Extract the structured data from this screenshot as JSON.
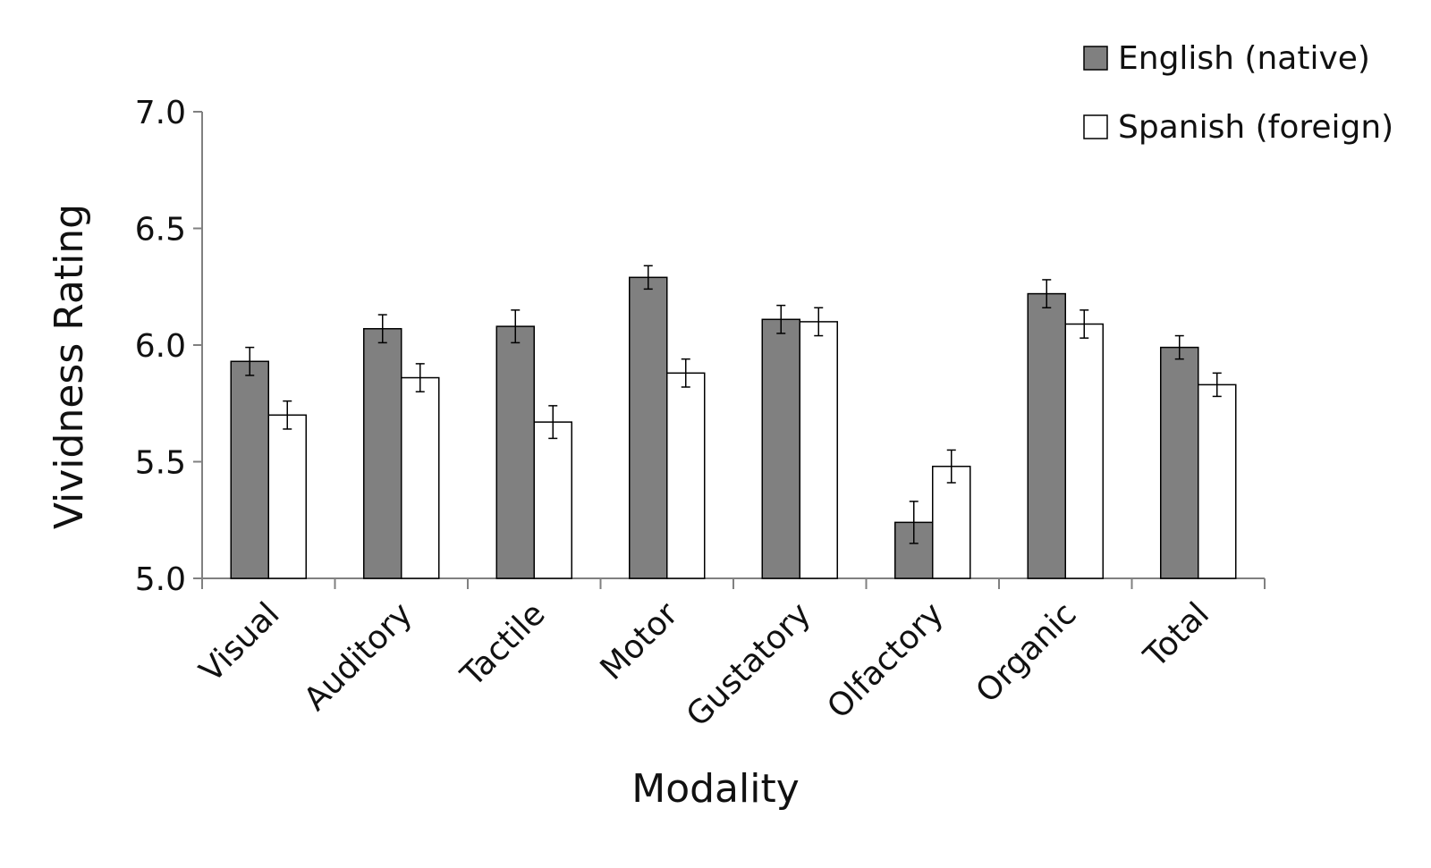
{
  "chart_data": {
    "type": "bar",
    "categories": [
      "Visual",
      "Auditory",
      "Tactile",
      "Motor",
      "Gustatory",
      "Olfactory",
      "Organic",
      "Total"
    ],
    "series": [
      {
        "name": "English (native)",
        "color": "#808080",
        "values": [
          5.93,
          6.07,
          6.08,
          6.29,
          6.11,
          5.24,
          6.22,
          5.99
        ],
        "errors": [
          0.06,
          0.06,
          0.07,
          0.05,
          0.06,
          0.09,
          0.06,
          0.05
        ]
      },
      {
        "name": "Spanish (foreign)",
        "color": "#ffffff",
        "values": [
          5.7,
          5.86,
          5.67,
          5.88,
          6.1,
          5.48,
          6.09,
          5.83
        ],
        "errors": [
          0.06,
          0.06,
          0.07,
          0.06,
          0.06,
          0.07,
          0.06,
          0.05
        ]
      }
    ],
    "title": "",
    "xlabel": "Modality",
    "ylabel": "Vividness Rating",
    "ylim": [
      5.0,
      7.0
    ],
    "yticks": [
      "5.0",
      "5.5",
      "6.0",
      "6.5",
      "7.0"
    ],
    "grid": false,
    "legend_position": "top-right",
    "error_bars": true
  }
}
